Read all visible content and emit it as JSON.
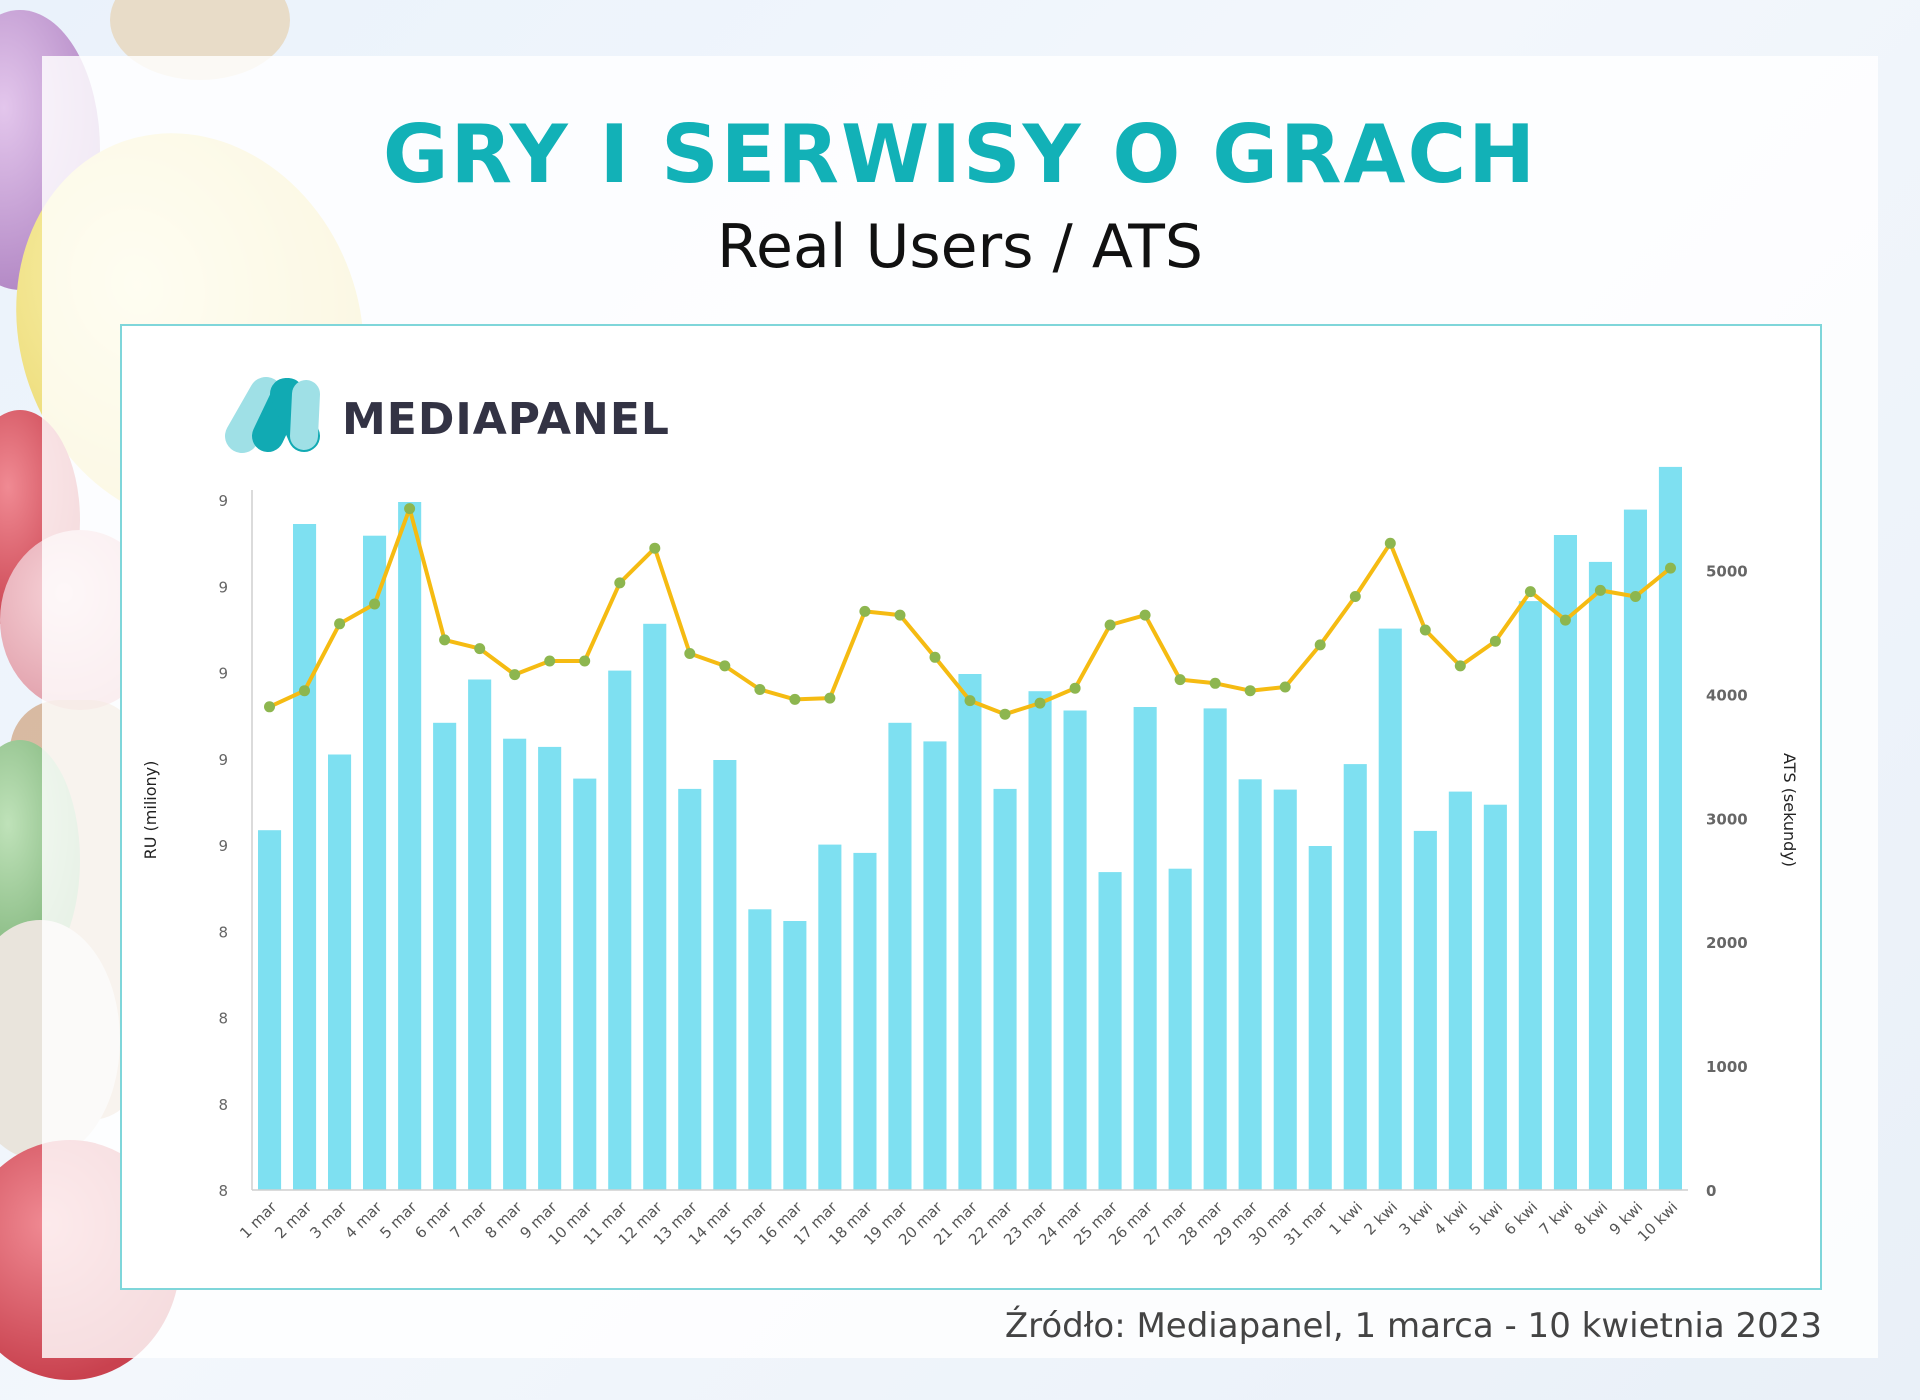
{
  "header": {
    "title": "GRY I SERWISY O GRACH",
    "subtitle": "Real Users / ATS"
  },
  "logo": {
    "text": "MEDIAPANEL"
  },
  "source": "Źródło: Mediapanel, 1 marca - 10 kwietnia 2023",
  "colors": {
    "title": "#12b1b7",
    "bar": "#7ee0f1",
    "line": "#f5bb12",
    "marker": "#8db64f",
    "logo_dark": "#11aab3",
    "logo_light": "#9fe0e6"
  },
  "chart_data": {
    "type": "bar",
    "title": "",
    "ylabel": "RU (miliony)",
    "ylabel2": "ATS (sekundy)",
    "left_ticks": [
      "8",
      "8",
      "8",
      "8",
      "9",
      "9",
      "9",
      "9",
      "9"
    ],
    "right_ticks": [
      "0",
      "1000",
      "2000",
      "3000",
      "4000",
      "5000"
    ],
    "y2lim": [
      0,
      5650
    ],
    "categories": [
      "1 mar",
      "2 mar",
      "3 mar",
      "4 mar",
      "5 mar",
      "6 mar",
      "7 mar",
      "8 mar",
      "9 mar",
      "10 mar",
      "11 mar",
      "12 mar",
      "13 mar",
      "14 mar",
      "15 mar",
      "16 mar",
      "17 mar",
      "18 mar",
      "19 mar",
      "20 mar",
      "21 mar",
      "22 mar",
      "23 mar",
      "24 mar",
      "25 mar",
      "26 mar",
      "27 mar",
      "28 mar",
      "29 mar",
      "30 mar",
      "31 mar",
      "1 kwi",
      "2 kwi",
      "3 kwi",
      "4 kwi",
      "5 kwi",
      "6 kwi",
      "7 kwi",
      "8 kwi",
      "9 kwi",
      "10 kwi"
    ],
    "series": [
      {
        "type": "bar",
        "axis": "left",
        "relative_values": [
          0.523,
          0.968,
          0.633,
          0.951,
          1.0,
          0.679,
          0.742,
          0.656,
          0.644,
          0.598,
          0.755,
          0.823,
          0.583,
          0.625,
          0.408,
          0.391,
          0.502,
          0.49,
          0.679,
          0.652,
          0.75,
          0.583,
          0.725,
          0.697,
          0.462,
          0.702,
          0.467,
          0.7,
          0.597,
          0.582,
          0.5,
          0.619,
          0.816,
          0.522,
          0.579,
          0.56,
          0.856,
          0.952,
          0.913,
          0.989,
          1.051
        ]
      },
      {
        "type": "line",
        "axis": "right",
        "values": [
          3900,
          4030,
          4570,
          4730,
          5500,
          4440,
          4370,
          4160,
          4270,
          4270,
          4900,
          5180,
          4330,
          4230,
          4040,
          3960,
          3970,
          4670,
          4640,
          4300,
          3950,
          3840,
          3930,
          4050,
          4560,
          4640,
          4120,
          4090,
          4030,
          4060,
          4400,
          4790,
          5220,
          4520,
          4230,
          4430,
          4830,
          4600,
          4840,
          4790,
          5020
        ]
      }
    ],
    "grid": false,
    "legend": "none"
  }
}
